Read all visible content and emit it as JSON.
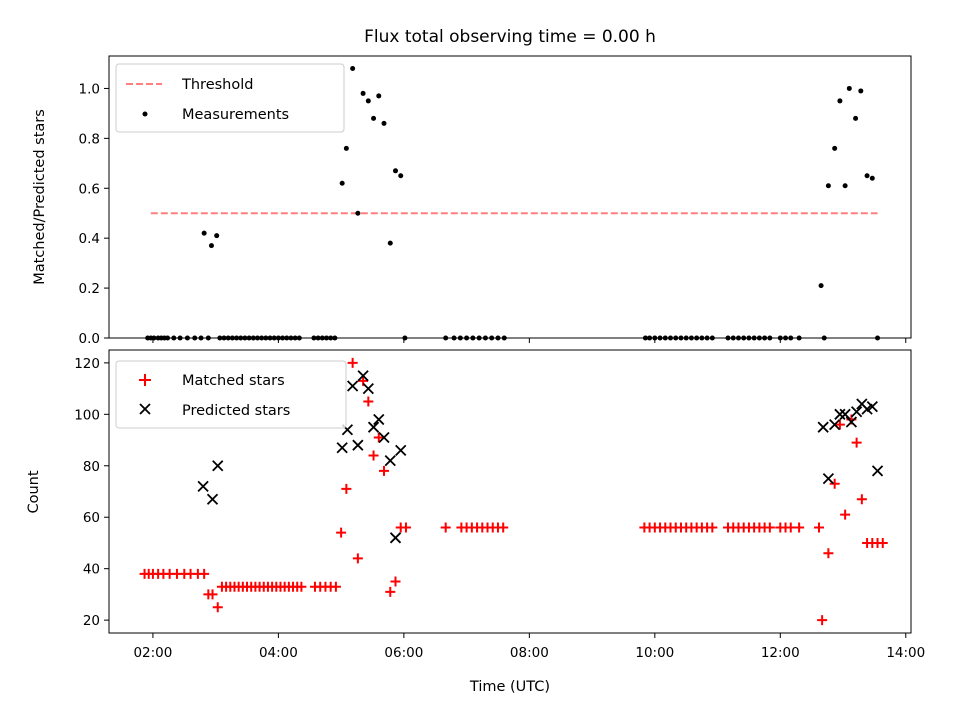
{
  "title": "Flux total observing time = 0.00 h",
  "xlabel": "Time (UTC)",
  "colors": {
    "threshold": "#ff7f7f",
    "measurement": "#000000",
    "matched": "#ff0000",
    "predicted": "#000000"
  },
  "chart_data": [
    {
      "type": "scatter",
      "ylabel": "Matched/Predicted stars",
      "xlim": [
        "01:18",
        "14:05"
      ],
      "ylim": [
        0,
        1.13
      ],
      "yticks": [
        "0.0",
        "0.2",
        "0.4",
        "0.6",
        "0.8",
        "1.0"
      ],
      "legend_position": "top-left",
      "threshold": {
        "name": "Threshold",
        "value": 0.5,
        "x_range": [
          "01:58",
          "13:33"
        ]
      },
      "series": [
        {
          "name": "Measurements",
          "x": [
            "01:55",
            "01:58",
            "02:01",
            "02:05",
            "02:08",
            "02:11",
            "02:14",
            "02:20",
            "02:26",
            "02:33",
            "02:40",
            "02:46",
            "02:49",
            "02:53",
            "02:56",
            "03:01",
            "03:04",
            "03:08",
            "03:12",
            "03:16",
            "03:20",
            "03:24",
            "03:28",
            "03:32",
            "03:36",
            "03:40",
            "03:44",
            "03:48",
            "03:52",
            "03:56",
            "04:00",
            "04:04",
            "04:08",
            "04:12",
            "04:16",
            "04:20",
            "04:34",
            "04:38",
            "04:42",
            "04:46",
            "04:50",
            "04:54",
            "05:01",
            "05:05",
            "05:11",
            "05:16",
            "05:21",
            "05:26",
            "05:31",
            "05:36",
            "05:41",
            "05:47",
            "05:52",
            "05:57",
            "06:01",
            "06:40",
            "06:48",
            "06:54",
            "07:00",
            "07:06",
            "07:12",
            "07:18",
            "07:24",
            "07:30",
            "07:36",
            "09:51",
            "09:55",
            "10:00",
            "10:05",
            "10:10",
            "10:15",
            "10:20",
            "10:25",
            "10:30",
            "10:35",
            "10:40",
            "10:45",
            "10:50",
            "10:55",
            "11:10",
            "11:15",
            "11:20",
            "11:25",
            "11:30",
            "11:35",
            "11:40",
            "11:45",
            "11:50",
            "12:00",
            "12:05",
            "12:10",
            "12:18",
            "12:39",
            "12:42",
            "12:46",
            "12:52",
            "12:57",
            "13:02",
            "13:06",
            "13:12",
            "13:17",
            "13:23",
            "13:28",
            "13:33"
          ],
          "y": [
            0,
            0,
            0,
            0,
            0,
            0,
            0,
            0,
            0,
            0,
            0,
            0,
            0.42,
            0,
            0.37,
            0.41,
            0,
            0,
            0,
            0,
            0,
            0,
            0,
            0,
            0,
            0,
            0,
            0,
            0,
            0,
            0,
            0,
            0,
            0,
            0,
            0,
            0,
            0,
            0,
            0,
            0,
            0,
            0.62,
            0.76,
            1.08,
            0.5,
            0.98,
            0.95,
            0.88,
            0.97,
            0.86,
            0.38,
            0.67,
            0.65,
            0,
            0,
            0,
            0,
            0,
            0,
            0,
            0,
            0,
            0,
            0,
            0,
            0,
            0,
            0,
            0,
            0,
            0,
            0,
            0,
            0,
            0,
            0,
            0,
            0,
            0,
            0,
            0,
            0,
            0,
            0,
            0,
            0,
            0,
            0,
            0,
            0,
            0,
            0.21,
            0,
            0.61,
            0.76,
            0.95,
            0.61,
            1.0,
            0.88,
            0.99,
            0.65,
            0.64,
            0
          ]
        }
      ]
    },
    {
      "type": "scatter",
      "ylabel": "Count",
      "xlim": [
        "01:18",
        "14:05"
      ],
      "ylim": [
        15,
        125
      ],
      "yticks": [
        "20",
        "40",
        "60",
        "80",
        "100",
        "120"
      ],
      "xticks": [
        "02:00",
        "04:00",
        "06:00",
        "08:00",
        "10:00",
        "12:00",
        "14:00"
      ],
      "legend_position": "top-left",
      "series": [
        {
          "name": "Matched stars",
          "x": [
            "01:52",
            "01:56",
            "02:00",
            "02:05",
            "02:10",
            "02:16",
            "02:23",
            "02:30",
            "02:36",
            "02:43",
            "02:49",
            "02:53",
            "02:57",
            "03:02",
            "03:06",
            "03:10",
            "03:14",
            "03:18",
            "03:22",
            "03:26",
            "03:30",
            "03:34",
            "03:38",
            "03:42",
            "03:46",
            "03:50",
            "03:54",
            "03:58",
            "04:02",
            "04:06",
            "04:10",
            "04:14",
            "04:18",
            "04:22",
            "04:35",
            "04:40",
            "04:45",
            "04:50",
            "04:55",
            "05:00",
            "05:05",
            "05:11",
            "05:16",
            "05:21",
            "05:26",
            "05:31",
            "05:36",
            "05:41",
            "05:47",
            "05:52",
            "05:57",
            "06:02",
            "06:40",
            "06:55",
            "07:00",
            "07:05",
            "07:10",
            "07:15",
            "07:20",
            "07:25",
            "07:30",
            "07:35",
            "09:50",
            "09:55",
            "10:00",
            "10:05",
            "10:10",
            "10:15",
            "10:20",
            "10:25",
            "10:30",
            "10:35",
            "10:40",
            "10:45",
            "10:50",
            "10:55",
            "11:10",
            "11:15",
            "11:20",
            "11:25",
            "11:30",
            "11:35",
            "11:40",
            "11:45",
            "11:50",
            "12:00",
            "12:05",
            "12:10",
            "12:18",
            "12:37",
            "12:40",
            "12:46",
            "12:52",
            "12:57",
            "13:02",
            "13:08",
            "13:13",
            "13:18",
            "13:23",
            "13:28",
            "13:33",
            "13:38"
          ],
          "y": [
            38,
            38,
            38,
            38,
            38,
            38,
            38,
            38,
            38,
            38,
            38,
            30,
            30,
            25,
            33,
            33,
            33,
            33,
            33,
            33,
            33,
            33,
            33,
            33,
            33,
            33,
            33,
            33,
            33,
            33,
            33,
            33,
            33,
            33,
            33,
            33,
            33,
            33,
            33,
            54,
            71,
            120,
            44,
            113,
            105,
            84,
            91,
            78,
            31,
            35,
            56,
            56,
            56,
            56,
            56,
            56,
            56,
            56,
            56,
            56,
            56,
            56,
            56,
            56,
            56,
            56,
            56,
            56,
            56,
            56,
            56,
            56,
            56,
            56,
            56,
            56,
            56,
            56,
            56,
            56,
            56,
            56,
            56,
            56,
            56,
            56,
            56,
            56,
            56,
            56,
            20,
            46,
            73,
            96,
            61,
            98,
            89,
            67,
            50,
            50,
            50,
            50
          ]
        },
        {
          "name": "Predicted stars",
          "x": [
            "02:48",
            "02:57",
            "03:02",
            "05:01",
            "05:06",
            "05:11",
            "05:16",
            "05:21",
            "05:26",
            "05:31",
            "05:36",
            "05:41",
            "05:47",
            "05:52",
            "05:57",
            "12:41",
            "12:46",
            "12:52",
            "12:57",
            "13:02",
            "13:08",
            "13:13",
            "13:18",
            "13:23",
            "13:28",
            "13:33"
          ],
          "y": [
            72,
            67,
            80,
            87,
            94,
            111,
            88,
            115,
            110,
            95,
            98,
            91,
            82,
            52,
            86,
            95,
            75,
            96,
            100,
            100,
            97,
            101,
            104,
            102,
            103,
            78
          ]
        }
      ]
    }
  ]
}
